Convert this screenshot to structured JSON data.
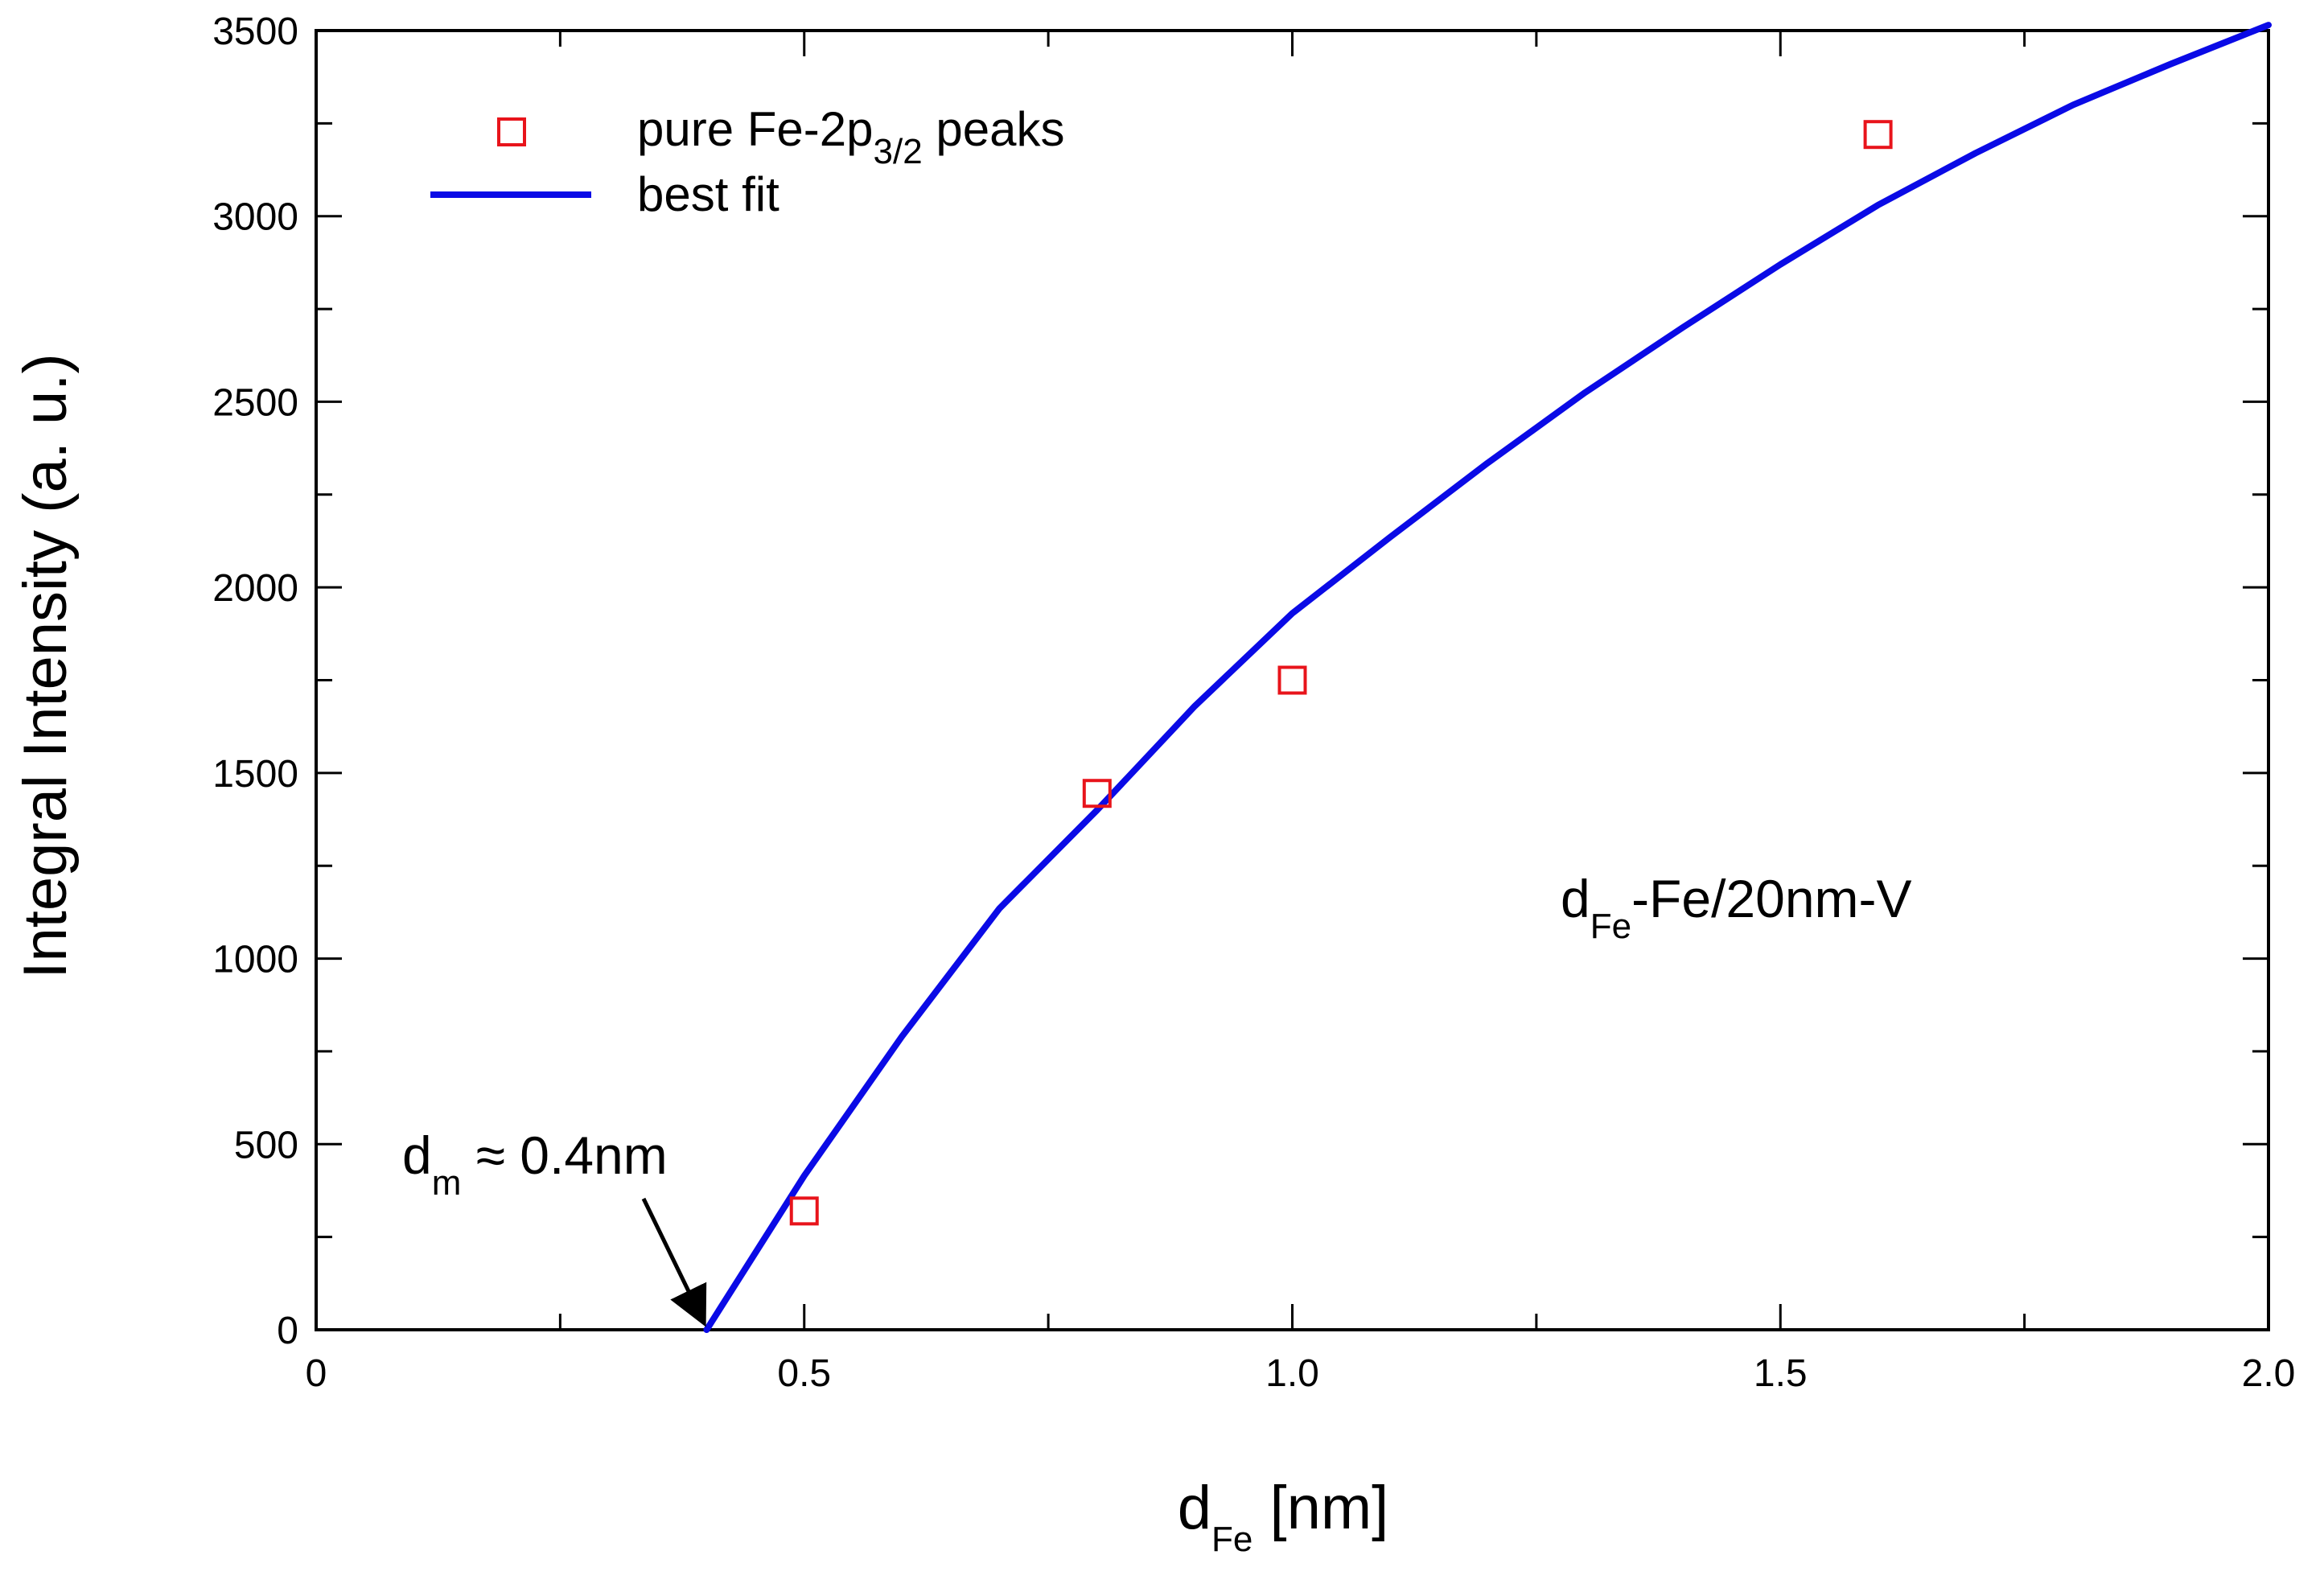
{
  "chart_data": {
    "type": "scatter",
    "xlabel": {
      "main": "d",
      "sub": "Fe",
      "rest": " [nm]"
    },
    "ylabel": "Integral Intensity (a. u.)",
    "xlim": [
      0,
      2.0
    ],
    "ylim": [
      0,
      3500
    ],
    "x_ticks": [
      0,
      0.5,
      1.0,
      1.5,
      2.0
    ],
    "x_tick_labels": [
      "0",
      "0.5",
      "1.0",
      "1.5",
      "2.0"
    ],
    "y_ticks": [
      0,
      500,
      1000,
      1500,
      2000,
      2500,
      3000,
      3500
    ],
    "y_tick_labels": [
      "0",
      "500",
      "1000",
      "1500",
      "2000",
      "2500",
      "3000",
      "3500"
    ],
    "grid": false,
    "legend_position": "top-left",
    "series": [
      {
        "name": {
          "main": "pure Fe-2p",
          "sub": "3/2",
          "rest": " peaks"
        },
        "type": "scatter",
        "marker": "open-square",
        "color": "#e8141b",
        "points": [
          {
            "x": 0.5,
            "y": 320
          },
          {
            "x": 0.8,
            "y": 1445
          },
          {
            "x": 1.0,
            "y": 1750
          },
          {
            "x": 1.6,
            "y": 3220
          }
        ]
      },
      {
        "name": "best fit",
        "type": "line",
        "color": "#0a0ae6",
        "points": [
          {
            "x": 0.4,
            "y": 0
          },
          {
            "x": 0.5,
            "y": 415
          },
          {
            "x": 0.6,
            "y": 790
          },
          {
            "x": 0.7,
            "y": 1135
          },
          {
            "x": 0.8,
            "y": 1400
          },
          {
            "x": 0.9,
            "y": 1680
          },
          {
            "x": 1.0,
            "y": 1930
          },
          {
            "x": 1.1,
            "y": 2135
          },
          {
            "x": 1.2,
            "y": 2335
          },
          {
            "x": 1.3,
            "y": 2525
          },
          {
            "x": 1.4,
            "y": 2700
          },
          {
            "x": 1.5,
            "y": 2870
          },
          {
            "x": 1.6,
            "y": 3030
          },
          {
            "x": 1.7,
            "y": 3170
          },
          {
            "x": 1.8,
            "y": 3300
          },
          {
            "x": 1.9,
            "y": 3410
          },
          {
            "x": 2.0,
            "y": 3515
          }
        ]
      }
    ],
    "annotations": [
      {
        "id": "dm",
        "main": "d",
        "sub": "m",
        "rest": " ≈ 0.4nm",
        "arrow_target": {
          "x": 0.4,
          "y": 0
        }
      },
      {
        "id": "sample",
        "main": "d",
        "sub": "Fe",
        "rest": "-Fe/20nm-V"
      }
    ]
  }
}
